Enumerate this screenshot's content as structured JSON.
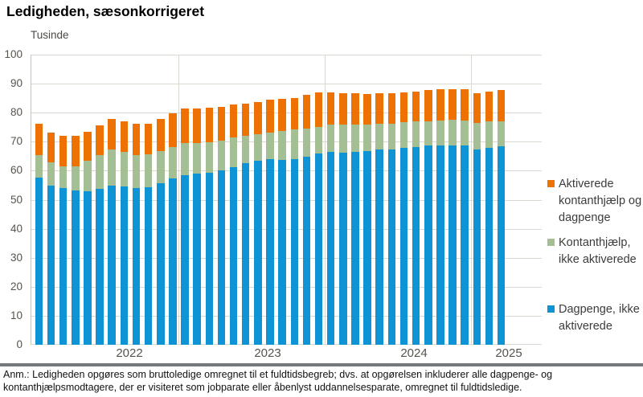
{
  "header": {
    "title": "Ledigheden, sæsonkorrigeret"
  },
  "chart_data": {
    "type": "bar",
    "stacked": true,
    "title": "Ledigheden, sæsonkorrigeret",
    "ylabel": "Tusinde",
    "xlabel": "",
    "ylim": [
      0,
      100
    ],
    "y_ticks": [
      0,
      10,
      20,
      30,
      40,
      50,
      60,
      70,
      80,
      90,
      100
    ],
    "x_tick_labels": [
      "2022",
      "2023",
      "2024",
      "2025"
    ],
    "grid": true,
    "legend_position": "right",
    "months": [
      "2022-01",
      "2022-02",
      "2022-03",
      "2022-04",
      "2022-05",
      "2022-06",
      "2022-07",
      "2022-08",
      "2022-09",
      "2022-10",
      "2022-11",
      "2022-12",
      "2023-01",
      "2023-02",
      "2023-03",
      "2023-04",
      "2023-05",
      "2023-06",
      "2023-07",
      "2023-08",
      "2023-09",
      "2023-10",
      "2023-11",
      "2023-12",
      "2024-01",
      "2024-02",
      "2024-03",
      "2024-04",
      "2024-05",
      "2024-06",
      "2024-07",
      "2024-08",
      "2024-09",
      "2024-10",
      "2024-11",
      "2024-12",
      "2025-01",
      "2025-02",
      "2025-03"
    ],
    "series": [
      {
        "name": "Dagpenge, ikke aktiverede",
        "color": "#0e93d4",
        "values": [
          57.6,
          54.9,
          53.9,
          53.3,
          52.8,
          53.7,
          54.9,
          54.6,
          54.0,
          54.4,
          55.8,
          57.4,
          58.5,
          59.0,
          59.3,
          60.0,
          61.3,
          62.7,
          63.5,
          64.1,
          63.7,
          64.1,
          64.8,
          65.9,
          66.4,
          66.2,
          66.5,
          66.7,
          67.3,
          67.3,
          67.8,
          68.1,
          68.7,
          68.8,
          68.6,
          68.6,
          67.3,
          67.8,
          68.4
        ]
      },
      {
        "name": "Kontanthjælp, ikke aktiverede",
        "color": "#a5bf95",
        "values": [
          7.9,
          8.1,
          7.7,
          8.1,
          10.5,
          11.6,
          12.4,
          11.9,
          11.3,
          11.3,
          11.1,
          10.7,
          11.1,
          10.6,
          10.5,
          10.4,
          10.1,
          9.2,
          9.1,
          9.1,
          9.9,
          10.2,
          9.7,
          9.3,
          9.5,
          9.6,
          9.4,
          9.1,
          8.8,
          8.8,
          8.8,
          8.8,
          8.4,
          8.5,
          8.9,
          8.7,
          9.1,
          9.1,
          8.7
        ]
      },
      {
        "name": "Aktiverede kontanthjælp og dagpenge",
        "color": "#ee7203",
        "values": [
          10.6,
          10.2,
          10.4,
          10.6,
          10.0,
          10.2,
          10.5,
          10.6,
          10.8,
          10.5,
          10.9,
          11.7,
          11.8,
          11.9,
          12.0,
          11.6,
          11.4,
          11.3,
          11.1,
          11.2,
          11.1,
          10.7,
          11.6,
          11.7,
          11.0,
          10.8,
          10.7,
          10.6,
          10.7,
          10.7,
          10.5,
          10.3,
          10.7,
          10.7,
          10.6,
          10.7,
          10.4,
          10.4,
          10.7
        ]
      }
    ]
  },
  "legend": {
    "items": [
      {
        "label": "Aktiverede\nkontanthjælp og\ndagpenge",
        "color": "#ee7203"
      },
      {
        "label": "Kontanthjælp,\nikke aktiverede",
        "color": "#a5bf95"
      },
      {
        "label": "Dagpenge, ikke\naktiverede",
        "color": "#0e93d4"
      }
    ]
  },
  "footnote": {
    "text": "Anm.: Ledigheden opgøres som bruttoledige omregnet til et fuldtidsbegreb; dvs. at opgørelsen inkluderer alle dagpenge- og kontanthjælpsmodtagere, der er visiteret som jobparate eller åbenlyst uddannelsesparate, omregnet til fuldtidsledige."
  }
}
